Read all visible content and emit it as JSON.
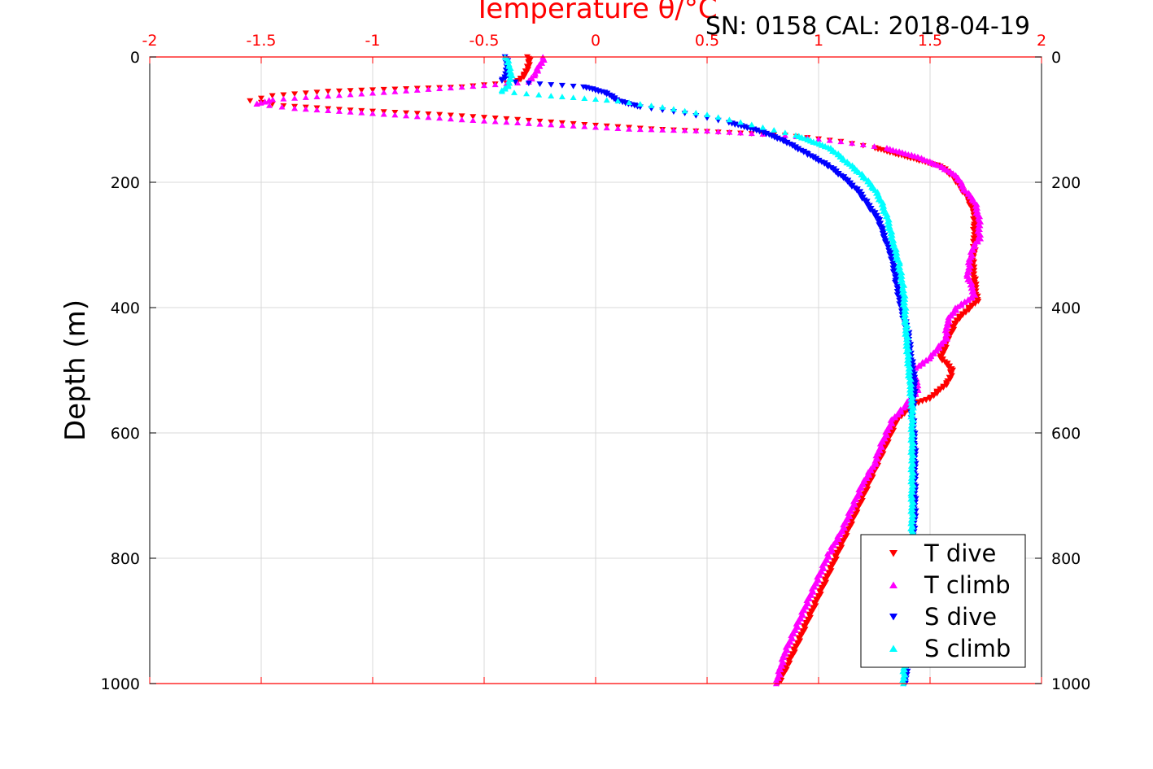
{
  "chart_data": {
    "type": "scatter",
    "title": "Temperature θ/°C",
    "annotation": "SN: 0158  CAL: 2018-04-19",
    "xlabel": "Temperature θ/°C",
    "ylabel": "Depth (m)",
    "xlim": [
      -2,
      2
    ],
    "ylim": [
      0,
      1000
    ],
    "y_reversed": true,
    "x_axis_position": "top",
    "grid": true,
    "legend_position": "bottom-right",
    "x_ticks": [
      "-2",
      "-1.5",
      "-1",
      "-0.5",
      "0",
      "0.5",
      "1",
      "1.5",
      "2"
    ],
    "x_tick_values": [
      -2,
      -1.5,
      -1,
      -0.5,
      0,
      0.5,
      1,
      1.5,
      2
    ],
    "y_ticks": [
      "0",
      "200",
      "400",
      "600",
      "800",
      "1000"
    ],
    "y_tick_values": [
      0,
      200,
      400,
      600,
      800,
      1000
    ],
    "x_axis_color": "#ff0000",
    "series": [
      {
        "name": "T dive",
        "color": "#ff0000",
        "marker": "triangle-down",
        "points": [
          [
            -0.3,
            0
          ],
          [
            -0.3,
            10
          ],
          [
            -0.31,
            20
          ],
          [
            -0.32,
            30
          ],
          [
            -0.35,
            40
          ],
          [
            -0.6,
            48
          ],
          [
            -1.2,
            55
          ],
          [
            -1.45,
            62
          ],
          [
            -1.55,
            70
          ],
          [
            -1.4,
            78
          ],
          [
            -1.1,
            85
          ],
          [
            -0.7,
            92
          ],
          [
            -0.35,
            100
          ],
          [
            -0.05,
            108
          ],
          [
            0.25,
            115
          ],
          [
            0.55,
            120
          ],
          [
            0.85,
            125
          ],
          [
            1.1,
            135
          ],
          [
            1.25,
            145
          ],
          [
            1.35,
            155
          ],
          [
            1.45,
            165
          ],
          [
            1.55,
            175
          ],
          [
            1.6,
            190
          ],
          [
            1.63,
            205
          ],
          [
            1.67,
            225
          ],
          [
            1.7,
            250
          ],
          [
            1.7,
            270
          ],
          [
            1.7,
            300
          ],
          [
            1.69,
            330
          ],
          [
            1.7,
            360
          ],
          [
            1.71,
            390
          ],
          [
            1.62,
            420
          ],
          [
            1.58,
            450
          ],
          [
            1.55,
            480
          ],
          [
            1.6,
            500
          ],
          [
            1.58,
            520
          ],
          [
            1.5,
            545
          ],
          [
            1.42,
            555
          ],
          [
            1.35,
            580
          ],
          [
            1.3,
            620
          ],
          [
            1.25,
            660
          ],
          [
            1.2,
            700
          ],
          [
            1.15,
            740
          ],
          [
            1.1,
            780
          ],
          [
            1.05,
            820
          ],
          [
            1,
            860
          ],
          [
            0.95,
            900
          ],
          [
            0.9,
            940
          ],
          [
            0.86,
            970
          ],
          [
            0.82,
            1000
          ]
        ]
      },
      {
        "name": "T climb",
        "color": "#ff00ff",
        "marker": "triangle-up",
        "points": [
          [
            -0.23,
            0
          ],
          [
            -0.26,
            20
          ],
          [
            -0.28,
            30
          ],
          [
            -0.3,
            40
          ],
          [
            -0.6,
            48
          ],
          [
            -1.1,
            60
          ],
          [
            -1.45,
            68
          ],
          [
            -1.52,
            75
          ],
          [
            -1.35,
            82
          ],
          [
            -1.0,
            90
          ],
          [
            -0.6,
            100
          ],
          [
            -0.2,
            108
          ],
          [
            0.15,
            115
          ],
          [
            0.5,
            118
          ],
          [
            0.85,
            125
          ],
          [
            1.1,
            135
          ],
          [
            1.3,
            145
          ],
          [
            1.45,
            160
          ],
          [
            1.55,
            175
          ],
          [
            1.62,
            190
          ],
          [
            1.65,
            210
          ],
          [
            1.7,
            230
          ],
          [
            1.72,
            260
          ],
          [
            1.72,
            290
          ],
          [
            1.7,
            300
          ],
          [
            1.68,
            320
          ],
          [
            1.67,
            350
          ],
          [
            1.7,
            380
          ],
          [
            1.62,
            400
          ],
          [
            1.58,
            420
          ],
          [
            1.57,
            450
          ],
          [
            1.5,
            480
          ],
          [
            1.42,
            500
          ],
          [
            1.45,
            530
          ],
          [
            1.38,
            560
          ],
          [
            1.33,
            580
          ],
          [
            1.28,
            620
          ],
          [
            1.25,
            650
          ],
          [
            1.2,
            680
          ],
          [
            1.15,
            720
          ],
          [
            1.1,
            760
          ],
          [
            1.05,
            790
          ],
          [
            1,
            830
          ],
          [
            0.95,
            870
          ],
          [
            0.9,
            910
          ],
          [
            0.85,
            950
          ],
          [
            0.81,
            1000
          ]
        ]
      },
      {
        "name": "S dive",
        "color": "#0000ff",
        "marker": "triangle-down",
        "points": [
          [
            -0.4,
            0
          ],
          [
            -0.4,
            15
          ],
          [
            -0.4,
            30
          ],
          [
            -0.42,
            38
          ],
          [
            -0.3,
            42
          ],
          [
            -0.05,
            48
          ],
          [
            0.05,
            58
          ],
          [
            0.1,
            70
          ],
          [
            0.2,
            80
          ],
          [
            0.4,
            90
          ],
          [
            0.6,
            105
          ],
          [
            0.75,
            120
          ],
          [
            0.85,
            135
          ],
          [
            0.95,
            155
          ],
          [
            1.05,
            175
          ],
          [
            1.12,
            195
          ],
          [
            1.18,
            215
          ],
          [
            1.22,
            235
          ],
          [
            1.27,
            260
          ],
          [
            1.3,
            290
          ],
          [
            1.33,
            320
          ],
          [
            1.35,
            360
          ],
          [
            1.37,
            400
          ],
          [
            1.4,
            440
          ],
          [
            1.41,
            470
          ],
          [
            1.43,
            520
          ],
          [
            1.42,
            570
          ],
          [
            1.43,
            620
          ],
          [
            1.43,
            680
          ],
          [
            1.43,
            730
          ],
          [
            1.42,
            780
          ],
          [
            1.41,
            830
          ],
          [
            1.4,
            880
          ],
          [
            1.4,
            930
          ],
          [
            1.39,
            1000
          ]
        ]
      },
      {
        "name": "S climb",
        "color": "#00ffff",
        "marker": "triangle-up",
        "points": [
          [
            -0.4,
            0
          ],
          [
            -0.39,
            15
          ],
          [
            -0.38,
            30
          ],
          [
            -0.39,
            45
          ],
          [
            -0.42,
            55
          ],
          [
            -0.2,
            62
          ],
          [
            0.1,
            70
          ],
          [
            0.3,
            80
          ],
          [
            0.5,
            92
          ],
          [
            0.7,
            108
          ],
          [
            0.9,
            125
          ],
          [
            1.05,
            145
          ],
          [
            1.12,
            165
          ],
          [
            1.2,
            190
          ],
          [
            1.25,
            210
          ],
          [
            1.28,
            230
          ],
          [
            1.31,
            260
          ],
          [
            1.33,
            290
          ],
          [
            1.36,
            330
          ],
          [
            1.38,
            370
          ],
          [
            1.39,
            420
          ],
          [
            1.4,
            470
          ],
          [
            1.41,
            520
          ],
          [
            1.42,
            560
          ],
          [
            1.42,
            600
          ],
          [
            1.42,
            650
          ],
          [
            1.42,
            700
          ],
          [
            1.42,
            750
          ],
          [
            1.41,
            800
          ],
          [
            1.41,
            850
          ],
          [
            1.4,
            900
          ],
          [
            1.39,
            950
          ],
          [
            1.38,
            1000
          ]
        ]
      }
    ]
  }
}
